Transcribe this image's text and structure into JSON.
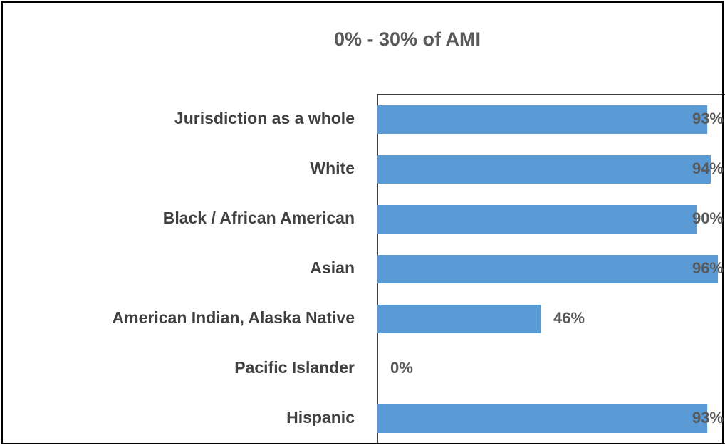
{
  "chart_data": {
    "type": "bar",
    "orientation": "horizontal",
    "title": "0% - 30% of AMI",
    "categories": [
      "Jurisdiction as a whole",
      "White",
      "Black / African American",
      "Asian",
      "American Indian, Alaska Native",
      "Pacific Islander",
      "Hispanic"
    ],
    "values": [
      93,
      94,
      90,
      96,
      46,
      0,
      93
    ],
    "value_labels": [
      "93%",
      "94%",
      "90%",
      "96%",
      "46%",
      "0%",
      "93%"
    ],
    "color": "#5b9bd5",
    "xlim": [
      0,
      100
    ]
  }
}
